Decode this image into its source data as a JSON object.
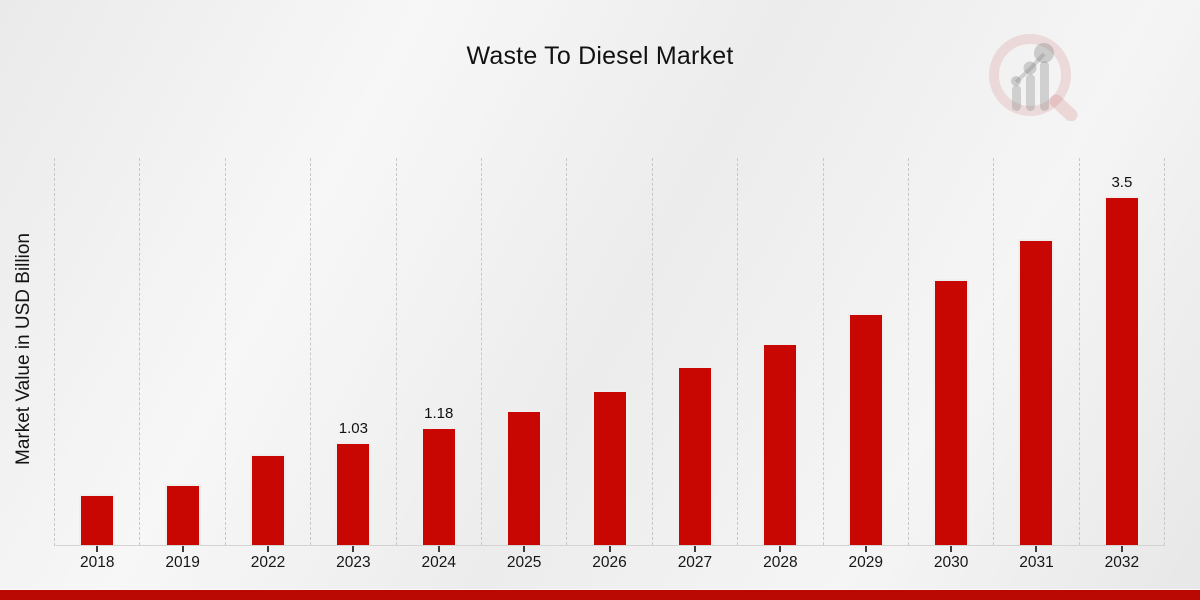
{
  "title": "Waste To Diesel Market",
  "y_axis_label": "Market Value in USD Billion",
  "logo_name": "market-research-future-watermark",
  "colors": {
    "bar": "#c90702",
    "bar_edge": "#f1efee",
    "bottom_strip": "#b90902",
    "gridline": "#c7c7c7",
    "tick": "#3c3c3c"
  },
  "chart_data": {
    "type": "bar",
    "title": "Waste To Diesel Market",
    "xlabel": "",
    "ylabel": "Market Value in USD Billion",
    "categories": [
      "2018",
      "2019",
      "2022",
      "2023",
      "2024",
      "2025",
      "2026",
      "2027",
      "2028",
      "2029",
      "2030",
      "2031",
      "2032"
    ],
    "values": [
      0.51,
      0.61,
      0.91,
      1.03,
      1.18,
      1.35,
      1.55,
      1.79,
      2.03,
      2.33,
      2.67,
      3.07,
      3.5
    ],
    "data_labels": [
      "",
      "",
      "",
      "1.03",
      "1.18",
      "",
      "",
      "",
      "",
      "",
      "",
      "",
      "3.5"
    ],
    "ylim": [
      0,
      3.88
    ],
    "y_ticks_visible": false,
    "grid": "vertical-dashed",
    "legend": "none",
    "bar_color": "#c90702"
  }
}
